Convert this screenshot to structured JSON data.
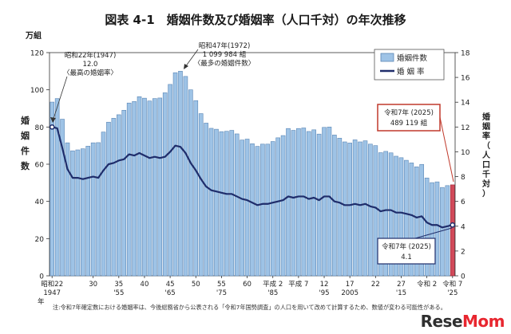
{
  "chart_data": {
    "type": "bar+line",
    "title": "図表 4-1　婚姻件数及び婚姻率（人口千対）の年次推移",
    "left_axis": {
      "unit": "万組",
      "label": "婚姻件数",
      "ticks": [
        0,
        20,
        40,
        60,
        80,
        100,
        120
      ],
      "range": [
        0,
        120
      ]
    },
    "right_axis": {
      "label": "婚姻率（人口千対）",
      "ticks": [
        0,
        2,
        4,
        6,
        8,
        10,
        12,
        14,
        16,
        18
      ],
      "range": [
        0,
        18
      ]
    },
    "x_tick_labels": [
      {
        "year": 1947,
        "line1": "昭和22",
        "line2": "1947",
        "line3": "年"
      },
      {
        "year": 1955,
        "line1": "30",
        "line2": ""
      },
      {
        "year": 1960,
        "line1": "35",
        "line2": "'55"
      },
      {
        "year": 1965,
        "line1": "40",
        "line2": ""
      },
      {
        "year": 1970,
        "line1": "45",
        "line2": "'65"
      },
      {
        "year": 1975,
        "line1": "50",
        "line2": ""
      },
      {
        "year": 1980,
        "line1": "55",
        "line2": "'75"
      },
      {
        "year": 1985,
        "line1": "60",
        "line2": ""
      },
      {
        "year": 1990,
        "line1": "平成 2",
        "line2": "'85"
      },
      {
        "year": 1995,
        "line1": "平成 7",
        "line2": ""
      },
      {
        "year": 2000,
        "line1": "12",
        "line2": "'95"
      },
      {
        "year": 2005,
        "line1": "17",
        "line2": "2005"
      },
      {
        "year": 2010,
        "line1": "22",
        "line2": ""
      },
      {
        "year": 2015,
        "line1": "27",
        "line2": "'15"
      },
      {
        "year": 2020,
        "line1": "令和 2",
        "line2": ""
      },
      {
        "year": 2025,
        "line1": "令和 7",
        "line2": "'25"
      }
    ],
    "legend": {
      "position": "top-right",
      "bar_label": "婚姻件数",
      "line_label": "婚 姻 率"
    },
    "series": [
      {
        "name": "婚姻件数",
        "type": "bar",
        "axis": "left",
        "unit": "万組",
        "x": [
          1947,
          1948,
          1949,
          1950,
          1951,
          1952,
          1953,
          1954,
          1955,
          1956,
          1957,
          1958,
          1959,
          1960,
          1961,
          1962,
          1963,
          1964,
          1965,
          1966,
          1967,
          1968,
          1969,
          1970,
          1971,
          1972,
          1973,
          1974,
          1975,
          1976,
          1977,
          1978,
          1979,
          1980,
          1981,
          1982,
          1983,
          1984,
          1985,
          1986,
          1987,
          1988,
          1989,
          1990,
          1991,
          1992,
          1993,
          1994,
          1995,
          1996,
          1997,
          1998,
          1999,
          2000,
          2001,
          2002,
          2003,
          2004,
          2005,
          2006,
          2007,
          2008,
          2009,
          2010,
          2011,
          2012,
          2013,
          2014,
          2015,
          2016,
          2017,
          2018,
          2019,
          2020,
          2021,
          2022,
          2023,
          2024,
          2025
        ],
        "values": [
          93.4,
          95.3,
          84.2,
          71.5,
          67.2,
          67.7,
          68.3,
          69.7,
          71.5,
          71.6,
          77.3,
          82.6,
          84.7,
          86.6,
          89.0,
          92.9,
          93.7,
          96.3,
          95.5,
          94.0,
          95.3,
          95.6,
          98.4,
          102.9,
          109.2,
          110.0,
          107.2,
          100.0,
          94.2,
          87.2,
          82.1,
          79.3,
          78.8,
          77.5,
          77.7,
          78.2,
          76.3,
          73.0,
          73.5,
          71.0,
          69.6,
          70.8,
          70.8,
          72.2,
          74.2,
          75.4,
          79.2,
          78.2,
          79.2,
          79.5,
          77.6,
          78.5,
          76.2,
          79.8,
          80.0,
          75.7,
          74.0,
          72.0,
          71.4,
          73.1,
          72.0,
          72.6,
          70.8,
          70.0,
          66.2,
          66.9,
          66.1,
          64.3,
          63.5,
          62.1,
          60.7,
          58.6,
          59.9,
          52.6,
          50.1,
          50.5,
          47.5,
          48.5,
          48.9
        ]
      },
      {
        "name": "婚 姻 率",
        "type": "line",
        "axis": "right",
        "x": [
          1947,
          1948,
          1949,
          1950,
          1951,
          1952,
          1953,
          1954,
          1955,
          1956,
          1957,
          1958,
          1959,
          1960,
          1961,
          1962,
          1963,
          1964,
          1965,
          1966,
          1967,
          1968,
          1969,
          1970,
          1971,
          1972,
          1973,
          1974,
          1975,
          1976,
          1977,
          1978,
          1979,
          1980,
          1981,
          1982,
          1983,
          1984,
          1985,
          1986,
          1987,
          1988,
          1989,
          1990,
          1991,
          1992,
          1993,
          1994,
          1995,
          1996,
          1997,
          1998,
          1999,
          2000,
          2001,
          2002,
          2003,
          2004,
          2005,
          2006,
          2007,
          2008,
          2009,
          2010,
          2011,
          2012,
          2013,
          2014,
          2015,
          2016,
          2017,
          2018,
          2019,
          2020,
          2021,
          2022,
          2023,
          2024,
          2025
        ],
        "values": [
          12.0,
          11.9,
          10.3,
          8.6,
          7.9,
          7.9,
          7.8,
          7.9,
          8.0,
          7.9,
          8.5,
          9.0,
          9.1,
          9.3,
          9.4,
          9.8,
          9.7,
          9.9,
          9.7,
          9.5,
          9.6,
          9.5,
          9.6,
          10.0,
          10.5,
          10.4,
          9.9,
          9.1,
          8.5,
          7.8,
          7.2,
          6.9,
          6.8,
          6.7,
          6.6,
          6.6,
          6.4,
          6.2,
          6.1,
          5.9,
          5.7,
          5.8,
          5.8,
          5.9,
          6.0,
          6.1,
          6.4,
          6.3,
          6.4,
          6.4,
          6.2,
          6.3,
          6.1,
          6.4,
          6.4,
          6.0,
          5.9,
          5.7,
          5.7,
          5.8,
          5.7,
          5.8,
          5.6,
          5.5,
          5.2,
          5.3,
          5.3,
          5.1,
          5.1,
          5.0,
          4.9,
          4.7,
          4.8,
          4.3,
          4.1,
          4.1,
          3.9,
          4.0,
          4.1
        ]
      }
    ],
    "annotations": [
      {
        "id": "s22",
        "line1": "昭和22年(1947)",
        "line2": "12.0",
        "line3": "〈最高の婚姻率〉"
      },
      {
        "id": "s47",
        "line1": "昭和47年(1972)",
        "line2": "1 099 984 組",
        "line3": "〈最多の婚姻件数〉"
      },
      {
        "id": "r7count",
        "line1": "令和7年 (2025)",
        "line2": "489 119 組"
      },
      {
        "id": "r7rate",
        "line1": "令和7年 (2025)",
        "line2": "4.1"
      }
    ],
    "note": "注:令和7年確定数における婚姻率は、今後総務省から公表される「令和7年国勢調査」の人口を用いて改めて計算するため、数値が変わる可能性がある。",
    "colors": {
      "bar_fill": "#9ec3e6",
      "bar_stroke": "#5a86b5",
      "bar_highlight": "#d24a5a",
      "line": "#1f2d6b",
      "callout_red": "#c0392b"
    }
  },
  "logo": {
    "part1": "Rese",
    "part2": "Mom"
  }
}
